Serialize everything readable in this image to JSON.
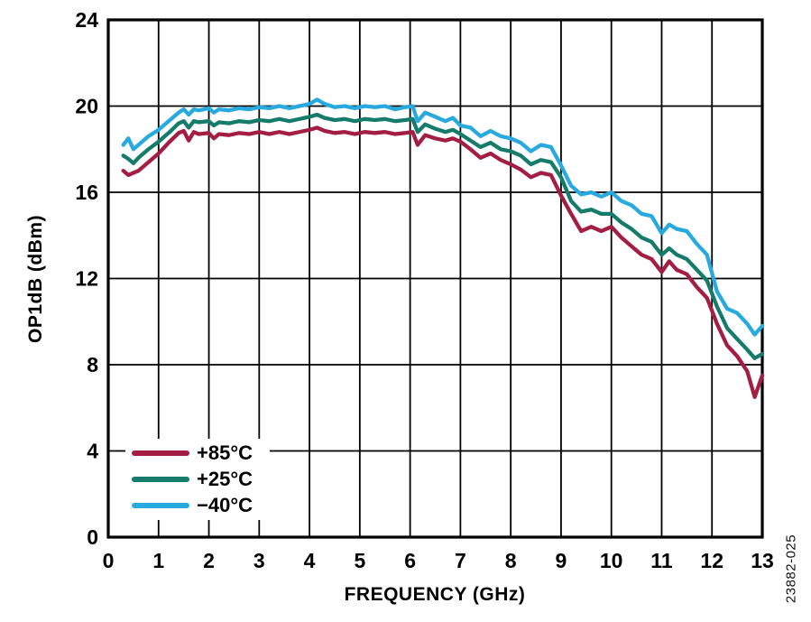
{
  "figure": {
    "id_label": "23882-025"
  },
  "colors": {
    "background": "#FFFFFF",
    "axis": "#000000",
    "grid": "#000000",
    "text": "#000000"
  },
  "chart_data": {
    "type": "line",
    "title": "",
    "xlabel": "FREQUENCY (GHz)",
    "ylabel": "OP1dB (dBm)",
    "xlim": [
      0,
      13
    ],
    "ylim": [
      0,
      24
    ],
    "x_ticks": [
      0,
      1,
      2,
      3,
      4,
      5,
      6,
      7,
      8,
      9,
      10,
      11,
      12,
      13
    ],
    "y_ticks": [
      0,
      4,
      8,
      12,
      16,
      20,
      24
    ],
    "grid": true,
    "legend_position": "inside-bottom-left",
    "x": [
      0.3,
      0.4,
      0.5,
      0.6,
      0.8,
      1.0,
      1.2,
      1.4,
      1.5,
      1.6,
      1.7,
      1.8,
      2.0,
      2.1,
      2.2,
      2.4,
      2.6,
      2.8,
      3.0,
      3.2,
      3.4,
      3.6,
      3.8,
      4.0,
      4.15,
      4.3,
      4.5,
      4.7,
      4.9,
      5.1,
      5.3,
      5.5,
      5.7,
      5.9,
      6.05,
      6.15,
      6.3,
      6.5,
      6.7,
      6.85,
      7.0,
      7.2,
      7.4,
      7.6,
      7.8,
      8.0,
      8.2,
      8.4,
      8.6,
      8.8,
      9.0,
      9.2,
      9.4,
      9.6,
      9.8,
      10.0,
      10.2,
      10.4,
      10.6,
      10.8,
      11.0,
      11.15,
      11.3,
      11.5,
      11.7,
      11.9,
      12.1,
      12.3,
      12.5,
      12.7,
      12.85,
      13.0
    ],
    "series": [
      {
        "name": "+85°C",
        "color": "#A41E44",
        "values": [
          17.0,
          16.8,
          16.9,
          17.0,
          17.4,
          17.8,
          18.3,
          18.75,
          18.85,
          18.4,
          18.8,
          18.7,
          18.75,
          18.5,
          18.7,
          18.65,
          18.75,
          18.7,
          18.8,
          18.7,
          18.8,
          18.7,
          18.8,
          18.9,
          19.0,
          18.85,
          18.75,
          18.8,
          18.7,
          18.8,
          18.75,
          18.8,
          18.7,
          18.75,
          18.8,
          18.2,
          18.65,
          18.5,
          18.4,
          18.5,
          18.35,
          18.0,
          17.6,
          17.8,
          17.5,
          17.3,
          17.05,
          16.7,
          16.9,
          16.8,
          15.85,
          15.0,
          14.2,
          14.4,
          14.2,
          14.4,
          13.9,
          13.5,
          13.1,
          12.9,
          12.3,
          12.8,
          12.4,
          12.2,
          11.6,
          11.1,
          9.9,
          8.9,
          8.4,
          7.7,
          6.5,
          7.5
        ]
      },
      {
        "name": "+25°C",
        "color": "#157C6C",
        "values": [
          17.7,
          17.55,
          17.35,
          17.6,
          18.0,
          18.35,
          18.75,
          19.2,
          19.3,
          19.0,
          19.3,
          19.25,
          19.3,
          19.1,
          19.25,
          19.2,
          19.3,
          19.25,
          19.35,
          19.3,
          19.4,
          19.3,
          19.4,
          19.5,
          19.6,
          19.45,
          19.35,
          19.4,
          19.3,
          19.4,
          19.35,
          19.4,
          19.3,
          19.35,
          19.4,
          18.8,
          19.15,
          18.95,
          18.8,
          18.9,
          18.7,
          18.4,
          18.1,
          18.3,
          18.0,
          17.9,
          17.7,
          17.3,
          17.5,
          17.4,
          16.7,
          15.6,
          15.1,
          15.2,
          15.0,
          15.0,
          14.6,
          14.3,
          13.9,
          13.7,
          13.1,
          13.4,
          13.1,
          12.9,
          12.4,
          11.9,
          10.7,
          9.7,
          9.2,
          8.7,
          8.3,
          8.5
        ]
      },
      {
        "name": "−40°C",
        "color": "#29AADF",
        "values": [
          18.2,
          18.5,
          18.0,
          18.2,
          18.6,
          18.9,
          19.3,
          19.7,
          19.85,
          19.6,
          19.85,
          19.8,
          19.9,
          19.7,
          19.85,
          19.8,
          19.9,
          19.85,
          19.95,
          19.9,
          20.0,
          19.9,
          20.0,
          20.1,
          20.3,
          20.1,
          19.95,
          20.0,
          19.9,
          20.0,
          19.95,
          20.0,
          19.85,
          19.95,
          20.0,
          19.3,
          19.7,
          19.5,
          19.3,
          19.45,
          19.1,
          19.0,
          18.6,
          18.85,
          18.6,
          18.5,
          18.3,
          17.9,
          18.2,
          18.1,
          17.25,
          16.3,
          15.9,
          16.0,
          15.8,
          16.0,
          15.6,
          15.4,
          15.0,
          14.9,
          14.1,
          14.5,
          14.3,
          14.2,
          13.6,
          13.1,
          11.4,
          10.6,
          10.4,
          9.9,
          9.4,
          9.8
        ]
      }
    ]
  }
}
